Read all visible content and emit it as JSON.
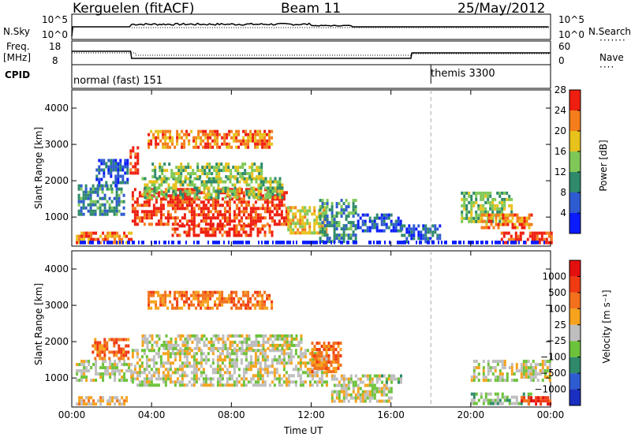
{
  "header": {
    "radar": "Kerguelen (fitACF)",
    "beam": "Beam 11",
    "date": "25/May/2012"
  },
  "panels": {
    "nsky_label": "N.Sky",
    "nsearch_label": "N.Search",
    "freq_label_1": "Freq.",
    "freq_label_2": "[MHz]",
    "nave_label": "Nave",
    "cpid_label": "CPID",
    "nsky_ticks": [
      "10^5",
      "10^0"
    ],
    "nsearch_ticks": [
      "10^5",
      "10^0"
    ],
    "freq_ticks": [
      "18",
      "8"
    ],
    "nave_ticks": [
      "60",
      "0"
    ],
    "cpid_segments": [
      {
        "name": "normal (fast) 151",
        "start_hour": 0
      },
      {
        "name": "themis 3300",
        "start_hour": 18
      }
    ]
  },
  "chart_data": [
    {
      "type": "heatmap",
      "title": "",
      "xlabel": "Time UT",
      "ylabel": "Slant Range [km]",
      "x_ticks": [
        "00:00",
        "04:00",
        "08:00",
        "12:00",
        "16:00",
        "20:00",
        "00:00"
      ],
      "y_ticks": [
        1000,
        2000,
        3000,
        4000
      ],
      "xlim": [
        0,
        24
      ],
      "ylim": [
        200,
        4500
      ],
      "colorbar": {
        "label": "Power [dB]",
        "ticks": [
          "4",
          "8",
          "12",
          "16",
          "20",
          "24",
          "28"
        ],
        "colors": [
          "#0a1cff",
          "#2f5bd0",
          "#2e8a6a",
          "#7fc857",
          "#e8c21c",
          "#f57d1c",
          "#ee1e10"
        ]
      },
      "regions": [
        {
          "x": [
            0.2,
            3.0
          ],
          "y": [
            300,
            600
          ],
          "level": 5
        },
        {
          "x": [
            0.3,
            2.6
          ],
          "y": [
            1100,
            1900
          ],
          "level": 2
        },
        {
          "x": [
            1.2,
            2.8
          ],
          "y": [
            1900,
            2600
          ],
          "level": 1
        },
        {
          "x": [
            2.9,
            3.3
          ],
          "y": [
            2200,
            2950
          ],
          "level": 6
        },
        {
          "x": [
            3.0,
            10.8
          ],
          "y": [
            800,
            1800
          ],
          "level": 6
        },
        {
          "x": [
            3.5,
            10.5
          ],
          "y": [
            1500,
            2100
          ],
          "level": 3
        },
        {
          "x": [
            4.0,
            9.5
          ],
          "y": [
            2100,
            2500
          ],
          "level": 3
        },
        {
          "x": [
            3.8,
            10.0
          ],
          "y": [
            2900,
            3400
          ],
          "level": 5
        },
        {
          "x": [
            5.0,
            10.0
          ],
          "y": [
            500,
            800
          ],
          "level": 6
        },
        {
          "x": [
            10.8,
            12.8
          ],
          "y": [
            600,
            1300
          ],
          "level": 4
        },
        {
          "x": [
            12.4,
            14.2
          ],
          "y": [
            300,
            1500
          ],
          "level": 2
        },
        {
          "x": [
            14.3,
            16.5
          ],
          "y": [
            600,
            1100
          ],
          "level": 1
        },
        {
          "x": [
            16.5,
            18.5
          ],
          "y": [
            300,
            800
          ],
          "level": 1
        },
        {
          "x": [
            19.5,
            22.0
          ],
          "y": [
            900,
            1700
          ],
          "level": 3
        },
        {
          "x": [
            20.5,
            23.0
          ],
          "y": [
            700,
            1100
          ],
          "level": 5
        },
        {
          "x": [
            21.5,
            24.0
          ],
          "y": [
            300,
            600
          ],
          "level": 6
        }
      ],
      "ground_band": {
        "y": [
          250,
          350
        ],
        "level": 0
      }
    },
    {
      "type": "heatmap",
      "title": "",
      "xlabel": "Time UT",
      "ylabel": "Slant Range [km]",
      "x_ticks": [
        "00:00",
        "04:00",
        "08:00",
        "12:00",
        "16:00",
        "20:00",
        "00:00"
      ],
      "y_ticks": [
        1000,
        2000,
        3000,
        4000
      ],
      "xlim": [
        0,
        24
      ],
      "ylim": [
        200,
        4500
      ],
      "colorbar": {
        "label": "Velocity [m s⁻¹]",
        "ticks": [
          "1000",
          "500",
          "100",
          "25",
          "−25",
          "−100",
          "−500",
          "−1000"
        ],
        "colors": [
          "#1a2fbf",
          "#2f5bd0",
          "#2e8a6a",
          "#6cc23a",
          "#bebebe",
          "#f6a21c",
          "#f3711c",
          "#ef3a12",
          "#e40f0f"
        ]
      },
      "regions": [
        {
          "x": [
            0.2,
            2.8
          ],
          "y": [
            300,
            500
          ],
          "level": 5
        },
        {
          "x": [
            0.2,
            3.0
          ],
          "y": [
            900,
            1500
          ],
          "level": 4
        },
        {
          "x": [
            1.0,
            2.8
          ],
          "y": [
            1500,
            2100
          ],
          "level": 6
        },
        {
          "x": [
            3.0,
            12.8
          ],
          "y": [
            800,
            1800
          ],
          "level": 4
        },
        {
          "x": [
            3.5,
            11.5
          ],
          "y": [
            1800,
            2200
          ],
          "level": 4
        },
        {
          "x": [
            3.8,
            10.0
          ],
          "y": [
            2900,
            3400
          ],
          "level": 6
        },
        {
          "x": [
            12.0,
            13.5
          ],
          "y": [
            1200,
            2000
          ],
          "level": 6
        },
        {
          "x": [
            13.0,
            16.0
          ],
          "y": [
            400,
            1100
          ],
          "level": 4
        },
        {
          "x": [
            15.5,
            16.5
          ],
          "y": [
            900,
            1100
          ],
          "level": 3
        },
        {
          "x": [
            20.0,
            24.0
          ],
          "y": [
            900,
            1500
          ],
          "level": 4
        },
        {
          "x": [
            20.0,
            23.0
          ],
          "y": [
            300,
            600
          ],
          "level": 3
        },
        {
          "x": [
            22.5,
            24.0
          ],
          "y": [
            300,
            500
          ],
          "level": 7
        }
      ]
    }
  ]
}
